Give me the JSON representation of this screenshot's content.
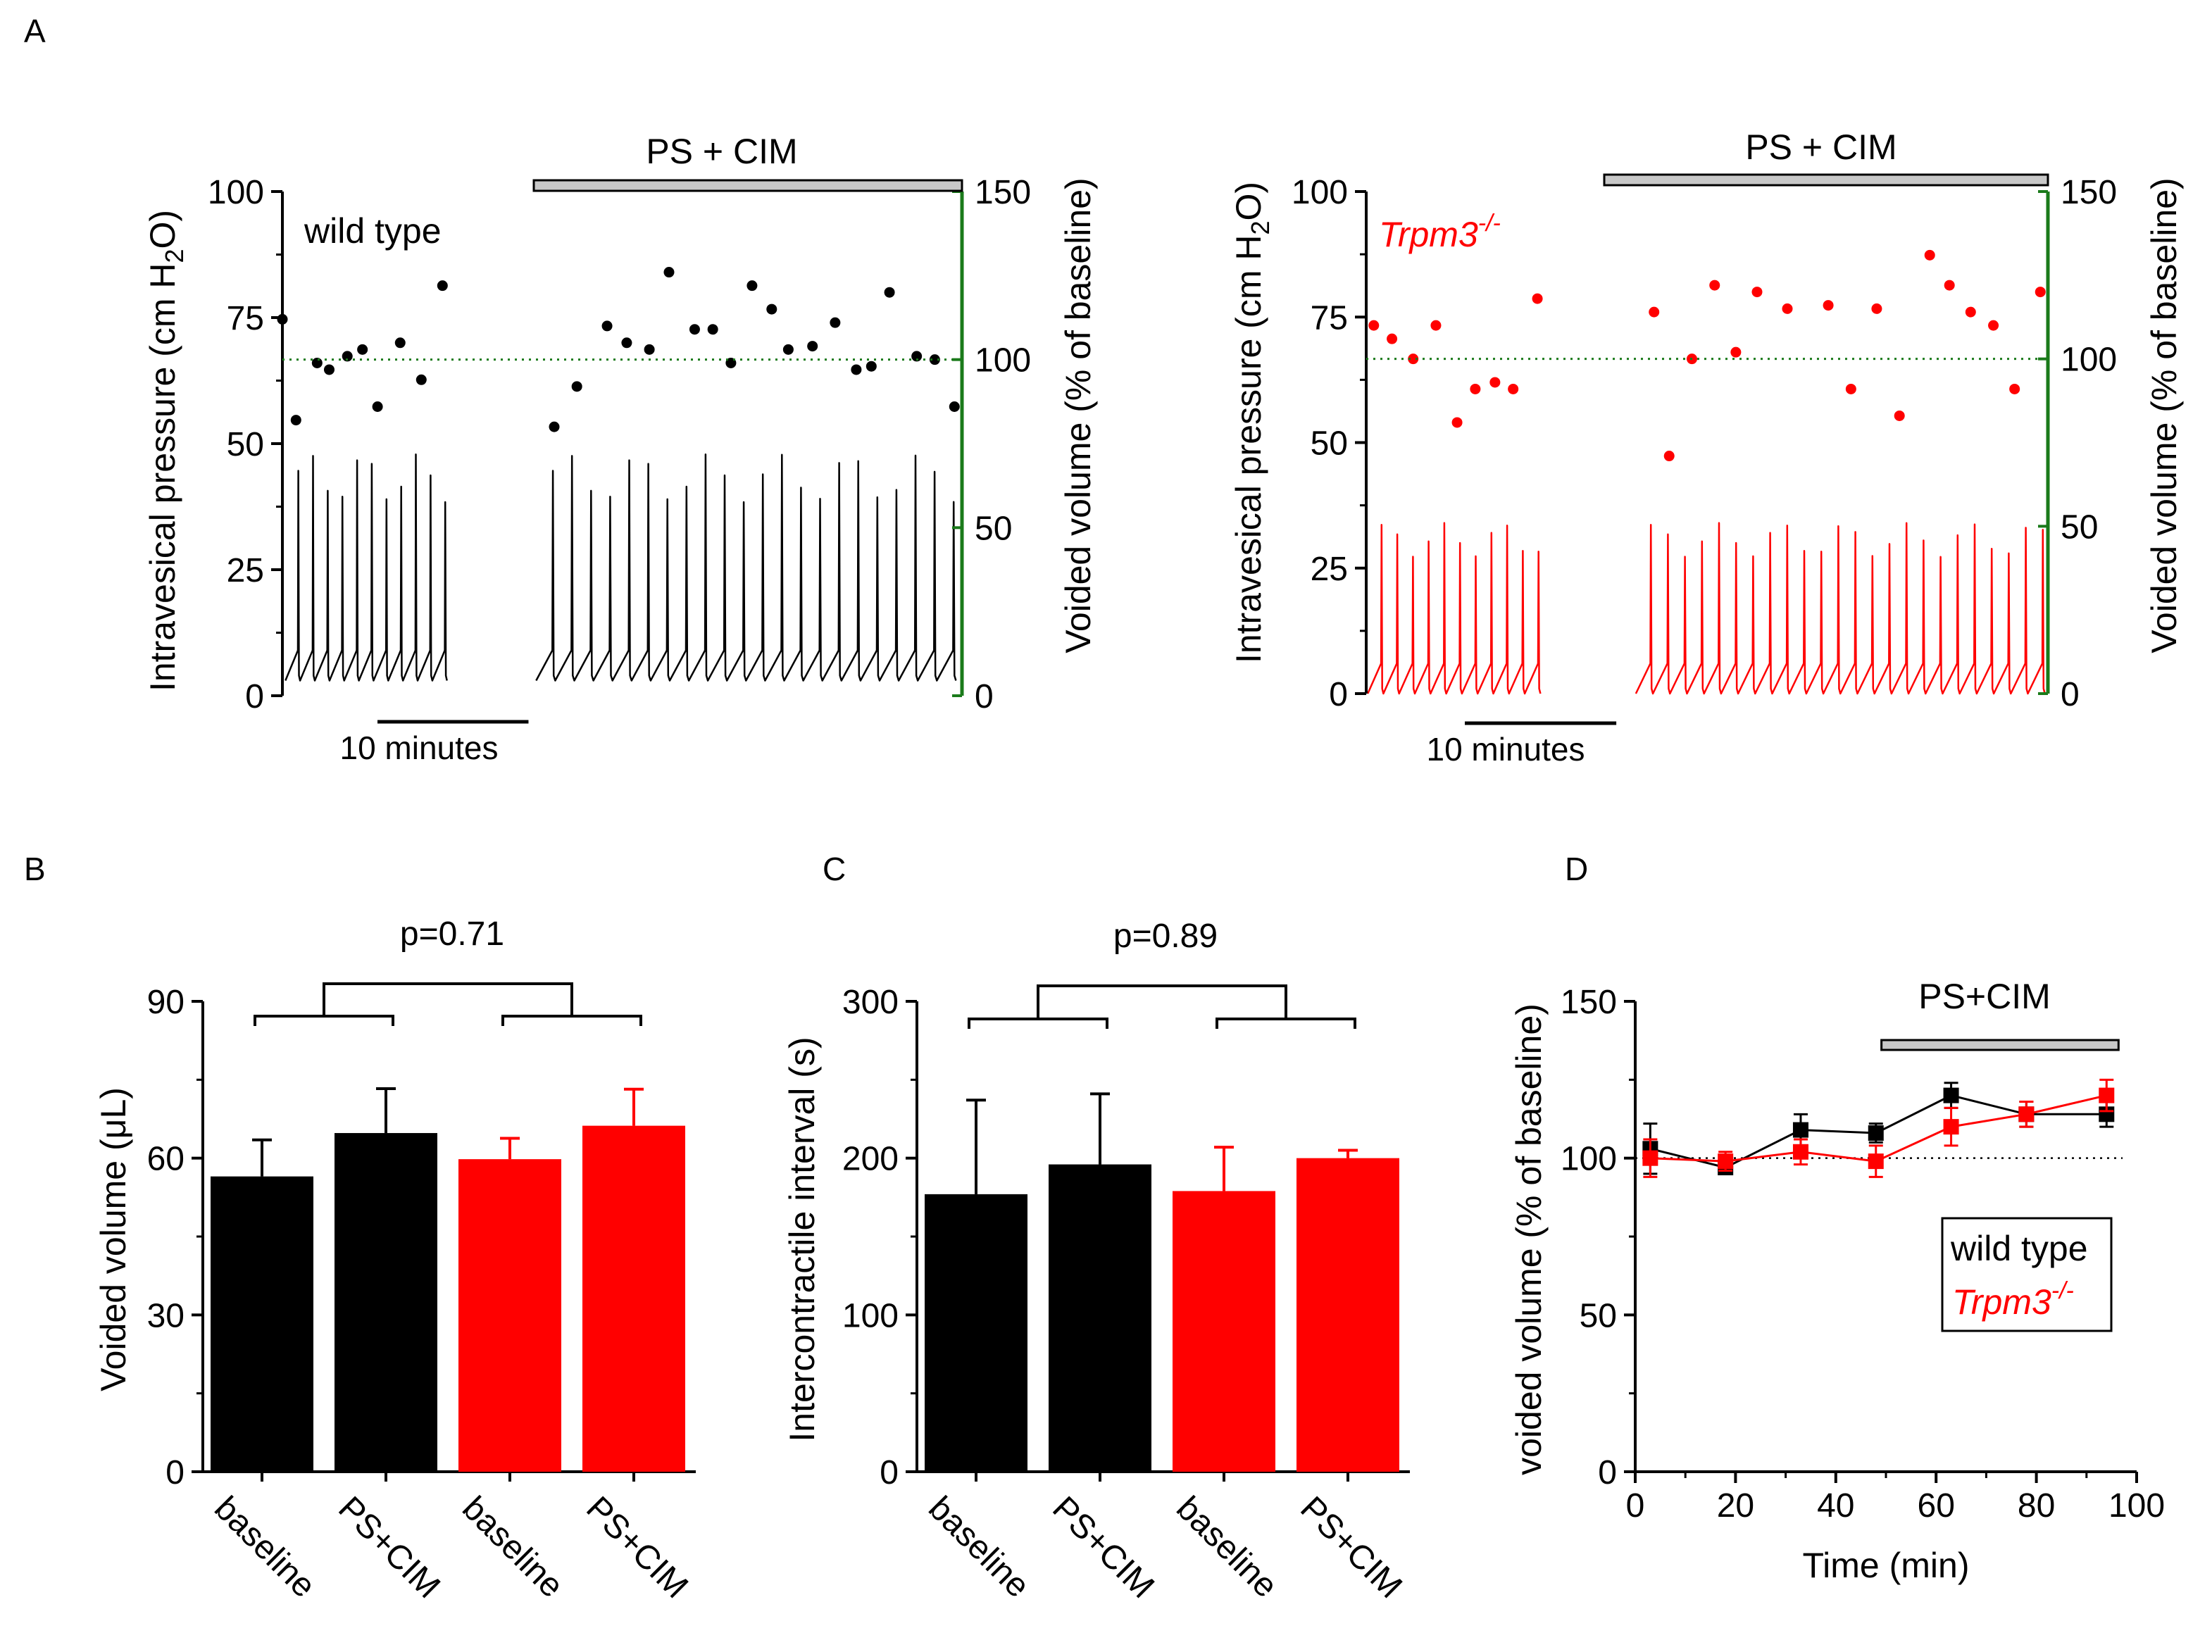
{
  "colors": {
    "wild_type": "#000000",
    "trpm3": "#ff0000",
    "right_axis": "#1a7a1a",
    "treatment_bar": "#c8c8c8",
    "baseline_line": "#1a7a1a"
  },
  "chart_data": [
    {
      "panel": "A",
      "type": "line",
      "subpanel": "wild type",
      "label": "wild type",
      "left_axis": {
        "label_main": "Intravesical pressure (cm H",
        "label_sub": "2",
        "label_end": "O)",
        "range": [
          0,
          100
        ],
        "ticks": [
          0,
          25,
          50,
          75,
          100
        ]
      },
      "right_axis": {
        "label": "Voided volume (% of baseline)",
        "range": [
          0,
          150
        ],
        "ticks": [
          0,
          50,
          100,
          150
        ]
      },
      "treatment": "PS + CIM",
      "scale_bar": "10 minutes",
      "baseline_ref": 100,
      "trace": {
        "baseline_peaks": 11,
        "treatment_peaks": 22,
        "peak_pressure": 48,
        "resting_pressure": 5
      },
      "voided_volume_points": [
        {
          "x": 0.0,
          "y": 112
        },
        {
          "x": 0.9,
          "y": 82
        },
        {
          "x": 2.3,
          "y": 99
        },
        {
          "x": 3.1,
          "y": 97
        },
        {
          "x": 4.3,
          "y": 101
        },
        {
          "x": 5.3,
          "y": 103
        },
        {
          "x": 6.3,
          "y": 86
        },
        {
          "x": 7.8,
          "y": 105
        },
        {
          "x": 9.2,
          "y": 94
        },
        {
          "x": 10.6,
          "y": 122
        },
        {
          "x": 18.0,
          "y": 80
        },
        {
          "x": 19.5,
          "y": 92
        },
        {
          "x": 21.5,
          "y": 110
        },
        {
          "x": 22.8,
          "y": 105
        },
        {
          "x": 24.3,
          "y": 103
        },
        {
          "x": 25.6,
          "y": 126
        },
        {
          "x": 27.3,
          "y": 109
        },
        {
          "x": 28.5,
          "y": 109
        },
        {
          "x": 29.7,
          "y": 99
        },
        {
          "x": 31.1,
          "y": 122
        },
        {
          "x": 32.4,
          "y": 115
        },
        {
          "x": 33.5,
          "y": 103
        },
        {
          "x": 35.1,
          "y": 104
        },
        {
          "x": 36.6,
          "y": 111
        },
        {
          "x": 38.0,
          "y": 97
        },
        {
          "x": 39.0,
          "y": 98
        },
        {
          "x": 40.2,
          "y": 120
        },
        {
          "x": 42.0,
          "y": 101
        },
        {
          "x": 43.2,
          "y": 100
        },
        {
          "x": 44.5,
          "y": 86
        }
      ]
    },
    {
      "panel": "A",
      "type": "line",
      "subpanel": "Trpm3-/-",
      "label": "Trpm3",
      "label_sup": "-/-",
      "left_axis": {
        "label_main": "Intravesical pressure (cm H",
        "label_sub": "2",
        "label_end": "O)",
        "range": [
          0,
          100
        ],
        "ticks": [
          0,
          25,
          50,
          75,
          100
        ]
      },
      "right_axis": {
        "label": "Voided volume (% of baseline)",
        "range": [
          0,
          150
        ],
        "ticks": [
          0,
          50,
          100,
          150
        ]
      },
      "treatment": "PS + CIM",
      "scale_bar": "10 minutes",
      "baseline_ref": 100,
      "trace": {
        "baseline_peaks": 11,
        "treatment_peaks": 24,
        "peak_pressure": 34,
        "resting_pressure": 2
      },
      "voided_volume_points": [
        {
          "x": 0.5,
          "y": 110
        },
        {
          "x": 1.7,
          "y": 106
        },
        {
          "x": 3.1,
          "y": 100
        },
        {
          "x": 4.6,
          "y": 110
        },
        {
          "x": 6.0,
          "y": 81
        },
        {
          "x": 7.2,
          "y": 91
        },
        {
          "x": 8.5,
          "y": 93
        },
        {
          "x": 9.7,
          "y": 91
        },
        {
          "x": 11.3,
          "y": 118
        },
        {
          "x": 19.0,
          "y": 114
        },
        {
          "x": 20.0,
          "y": 71
        },
        {
          "x": 21.5,
          "y": 100
        },
        {
          "x": 23.0,
          "y": 122
        },
        {
          "x": 24.4,
          "y": 102
        },
        {
          "x": 25.8,
          "y": 120
        },
        {
          "x": 27.8,
          "y": 115
        },
        {
          "x": 30.5,
          "y": 116
        },
        {
          "x": 32.0,
          "y": 91
        },
        {
          "x": 33.7,
          "y": 115
        },
        {
          "x": 35.2,
          "y": 83
        },
        {
          "x": 37.2,
          "y": 131
        },
        {
          "x": 38.5,
          "y": 122
        },
        {
          "x": 39.9,
          "y": 114
        },
        {
          "x": 41.4,
          "y": 110
        },
        {
          "x": 42.8,
          "y": 91
        },
        {
          "x": 44.5,
          "y": 120
        }
      ]
    },
    {
      "panel": "B",
      "type": "bar",
      "categories": [
        "baseline",
        "PS+CIM",
        "baseline",
        "PS+CIM"
      ],
      "values": [
        56.5,
        64.8,
        59.8,
        66.2
      ],
      "errors": [
        7,
        8.5,
        4,
        7
      ],
      "bar_colors": [
        "#000000",
        "#000000",
        "#ff0000",
        "#ff0000"
      ],
      "ylabel": "Voided volume (μL)",
      "ylim": [
        0,
        90
      ],
      "yticks": [
        0,
        30,
        60,
        90
      ],
      "annotation": "p=0.71"
    },
    {
      "panel": "C",
      "type": "bar",
      "categories": [
        "baseline",
        "PS+CIM",
        "baseline",
        "PS+CIM"
      ],
      "values": [
        177,
        196,
        179,
        200
      ],
      "errors": [
        60,
        45,
        28,
        5
      ],
      "bar_colors": [
        "#000000",
        "#000000",
        "#ff0000",
        "#ff0000"
      ],
      "ylabel": "Intercontractile interval (s)",
      "ylim": [
        0,
        300
      ],
      "yticks": [
        0,
        100,
        200,
        300
      ],
      "annotation": "p=0.89"
    },
    {
      "panel": "D",
      "type": "line",
      "xlabel": "Time (min)",
      "ylabel": "voided volume (% of baseline)",
      "xlim": [
        0,
        100
      ],
      "ylim": [
        0,
        150
      ],
      "xticks": [
        0,
        20,
        40,
        60,
        80,
        100
      ],
      "yticks": [
        0,
        50,
        100,
        150
      ],
      "treatment": "PS+CIM",
      "treatment_range": [
        47,
        94
      ],
      "baseline_ref": 100,
      "series": [
        {
          "name": "wild type",
          "color": "#000000",
          "x": [
            3,
            18,
            33,
            48,
            63,
            78,
            94
          ],
          "y": [
            103,
            97,
            109,
            108,
            120,
            114,
            114
          ],
          "err": [
            8,
            2,
            5,
            3,
            4,
            4,
            4
          ]
        },
        {
          "name": "Trpm3",
          "name_sup": "-/-",
          "color": "#ff0000",
          "x": [
            3,
            18,
            33,
            48,
            63,
            78,
            94
          ],
          "y": [
            100,
            99,
            102,
            99,
            110,
            114,
            120
          ],
          "err": [
            6,
            3,
            4,
            5,
            6,
            4,
            5
          ]
        }
      ],
      "legend_position": "bottom-right"
    }
  ],
  "panel_labels": {
    "a": "A",
    "b": "B",
    "c": "C",
    "d": "D"
  }
}
